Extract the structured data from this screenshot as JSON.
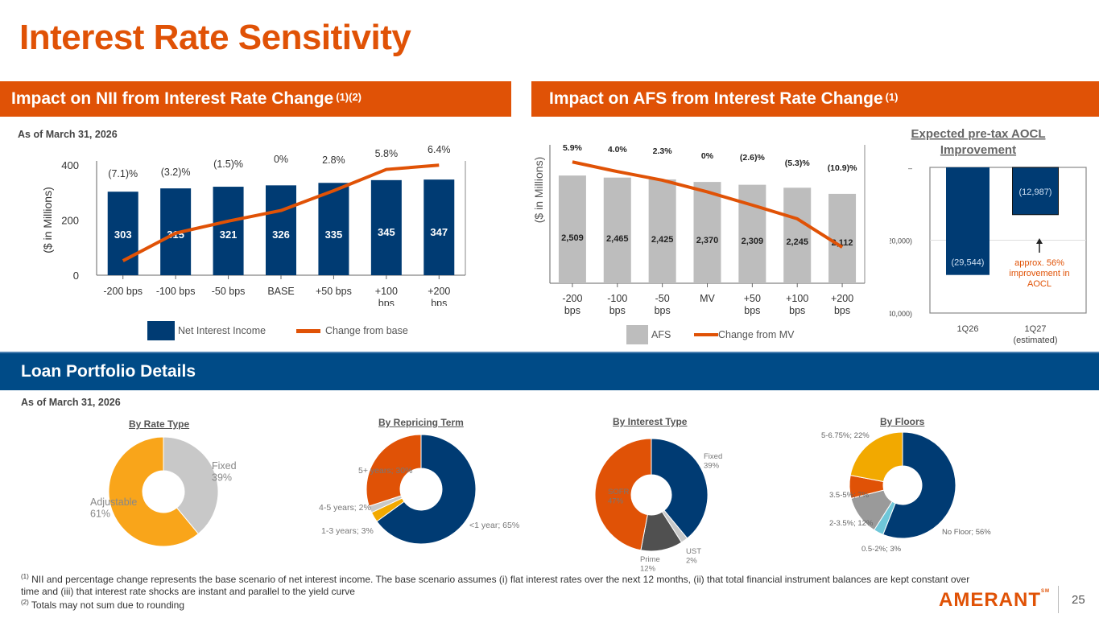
{
  "page": {
    "title": "Interest Rate Sensitivity",
    "page_number": "25",
    "logo_text": "AMERANT",
    "logo_mark": "SM"
  },
  "sections": {
    "nii": {
      "title": "Impact on NII from Interest Rate Change",
      "sup": "(1)(2)",
      "as_of": "As of March 31, 2026"
    },
    "afs": {
      "title": "Impact on AFS from Interest Rate Change",
      "sup": "(1)"
    },
    "loan": {
      "title": "Loan Portfolio Details",
      "as_of": "As of March 31, 2026"
    }
  },
  "colors": {
    "orange": "#e05206",
    "navy": "#003b73",
    "gray_bar": "#bdbdbd",
    "yellow": "#f9a51a",
    "light_gray": "#c8c8c8",
    "dark_gray": "#505050",
    "mid_gray": "#9a9a9a",
    "light_blue": "#6fc7d9",
    "gold": "#f2a900"
  },
  "chart_data": [
    {
      "id": "nii",
      "type": "bar",
      "categories": [
        "-200 bps",
        "-100 bps",
        "-50 bps",
        "BASE",
        "+50 bps",
        "+100 bps",
        "+200 bps"
      ],
      "category_lines": [
        [
          "-200 bps"
        ],
        [
          "-100 bps"
        ],
        [
          "-50 bps"
        ],
        [
          "BASE"
        ],
        [
          "+50 bps"
        ],
        [
          "+100",
          "bps"
        ],
        [
          "+200",
          "bps"
        ]
      ],
      "series": [
        {
          "name": "Net Interest Income",
          "kind": "bar",
          "values": [
            303,
            315,
            321,
            326,
            335,
            345,
            347
          ],
          "labels": [
            "303",
            "315",
            "321",
            "326",
            "335",
            "345",
            "347"
          ]
        },
        {
          "name": "Change from base",
          "kind": "line",
          "values": [
            -7.1,
            -3.2,
            -1.5,
            0,
            2.8,
            5.8,
            6.4
          ],
          "labels": [
            "(7.1)%",
            "(3.2)%",
            "(1.5)%",
            "0%",
            "2.8%",
            "5.8%",
            "6.4%"
          ]
        }
      ],
      "ylabel": "($ in Millions)",
      "ylim": [
        0,
        400
      ],
      "yticks": [
        0,
        200,
        400
      ],
      "ytick_labels": [
        "0",
        "200",
        "400"
      ],
      "secondary_ylim": [
        -8,
        7
      ],
      "legend": "bottom"
    },
    {
      "id": "afs",
      "type": "bar",
      "categories": [
        "-200 bps",
        "-100 bps",
        "-50 bps",
        "MV",
        "+50 bps",
        "+100 bps",
        "+200 bps"
      ],
      "category_lines": [
        [
          "-200",
          "bps"
        ],
        [
          "-100",
          "bps"
        ],
        [
          "-50",
          "bps"
        ],
        [
          "MV"
        ],
        [
          "+50",
          "bps"
        ],
        [
          "+100",
          "bps"
        ],
        [
          "+200",
          "bps"
        ]
      ],
      "series": [
        {
          "name": "AFS",
          "kind": "bar",
          "values": [
            2509,
            2465,
            2425,
            2370,
            2309,
            2245,
            2112
          ],
          "labels": [
            "2,509",
            "2,465",
            "2,425",
            "2,370",
            "2,309",
            "2,245",
            "2,112"
          ]
        },
        {
          "name": "Change from MV",
          "kind": "line",
          "values": [
            5.9,
            4.0,
            2.3,
            0,
            -2.6,
            -5.3,
            -10.9
          ],
          "labels": [
            "5.9%",
            "4.0%",
            "2.3%",
            "0%",
            "(2.6)%",
            "(5.3)%",
            "(10.9)%"
          ]
        }
      ],
      "ylabel": "($ in Millions)",
      "ylim": [
        0,
        3000
      ],
      "secondary_ylim": [
        -18,
        8
      ],
      "legend": "bottom"
    },
    {
      "id": "aocl",
      "type": "bar",
      "title": "Expected pre-tax AOCL Improvement",
      "categories": [
        "1Q26",
        "1Q27"
      ],
      "category_sublabels": [
        "",
        "(estimated)"
      ],
      "values": [
        -29544,
        -12987
      ],
      "labels": [
        "(29,544)",
        "(12,987)"
      ],
      "ylim": [
        -40000,
        0
      ],
      "yticks": [
        0,
        -20000,
        -40000
      ],
      "ytick_labels": [
        "–",
        "(20,000)",
        "(40,000)"
      ],
      "annotation": "approx. 56% improvement in AOCL",
      "annotation_lines": [
        "approx. 56%",
        "improvement in",
        "AOCL"
      ]
    },
    {
      "id": "rate_type",
      "type": "pie",
      "title": "By Rate Type",
      "slices": [
        {
          "label": "Fixed",
          "value": 39,
          "text": [
            "Fixed",
            "39%"
          ],
          "color": "#c8c8c8"
        },
        {
          "label": "Adjustable",
          "value": 61,
          "text": [
            "Adjustable",
            "61%"
          ],
          "color": "#f9a51a"
        }
      ]
    },
    {
      "id": "repricing",
      "type": "pie",
      "title": "By Repricing Term",
      "slices": [
        {
          "label": "<1 year",
          "value": 65,
          "text": [
            "<1 year; 65%"
          ],
          "color": "#003b73"
        },
        {
          "label": "1-3 years",
          "value": 3,
          "text": [
            "1-3 years; 3%"
          ],
          "color": "#f2a900"
        },
        {
          "label": "4-5 years",
          "value": 2,
          "text": [
            "4-5 years; 2%"
          ],
          "color": "#c8c8c8"
        },
        {
          "label": "5+ years",
          "value": 30,
          "text": [
            "5+ years; 30%"
          ],
          "color": "#e05206"
        }
      ]
    },
    {
      "id": "interest_type",
      "type": "pie",
      "title": "By Interest Type",
      "slices": [
        {
          "label": "Fixed",
          "value": 39,
          "text": [
            "Fixed",
            "39%"
          ],
          "color": "#003b73"
        },
        {
          "label": "UST",
          "value": 2,
          "text": [
            "UST",
            "2%"
          ],
          "color": "#c8c8c8"
        },
        {
          "label": "Prime",
          "value": 12,
          "text": [
            "Prime",
            "12%"
          ],
          "color": "#505050"
        },
        {
          "label": "SOFR",
          "value": 47,
          "text": [
            "SOFR",
            "47%"
          ],
          "color": "#e05206"
        }
      ]
    },
    {
      "id": "floors",
      "type": "pie",
      "title": "By Floors",
      "slices": [
        {
          "label": "No Floor",
          "value": 56,
          "text": [
            "No Floor; 56%"
          ],
          "color": "#003b73"
        },
        {
          "label": "0.5-2%",
          "value": 3,
          "text": [
            "0.5-2%; 3%"
          ],
          "color": "#6fc7d9"
        },
        {
          "label": "2-3.5%",
          "value": 12,
          "text": [
            "2-3.5%; 12%"
          ],
          "color": "#9a9a9a"
        },
        {
          "label": "3.5-5%",
          "value": 7,
          "text": [
            "3.5-5%; 7%"
          ],
          "color": "#e05206"
        },
        {
          "label": "5-6.75%",
          "value": 22,
          "text": [
            "5-6.75%; 22%"
          ],
          "color": "#f2a900"
        }
      ]
    }
  ],
  "footnotes": [
    {
      "sup": "(1)",
      "text": "NII and percentage change represents the base scenario of net interest income. The base scenario assumes (i) flat interest rates over the next 12 months, (ii) that total financial instrument balances  are kept constant over time and (iii) that interest rate shocks are instant and parallel to the yield curve"
    },
    {
      "sup": "(2)",
      "text": "Totals may not sum due to rounding"
    }
  ]
}
